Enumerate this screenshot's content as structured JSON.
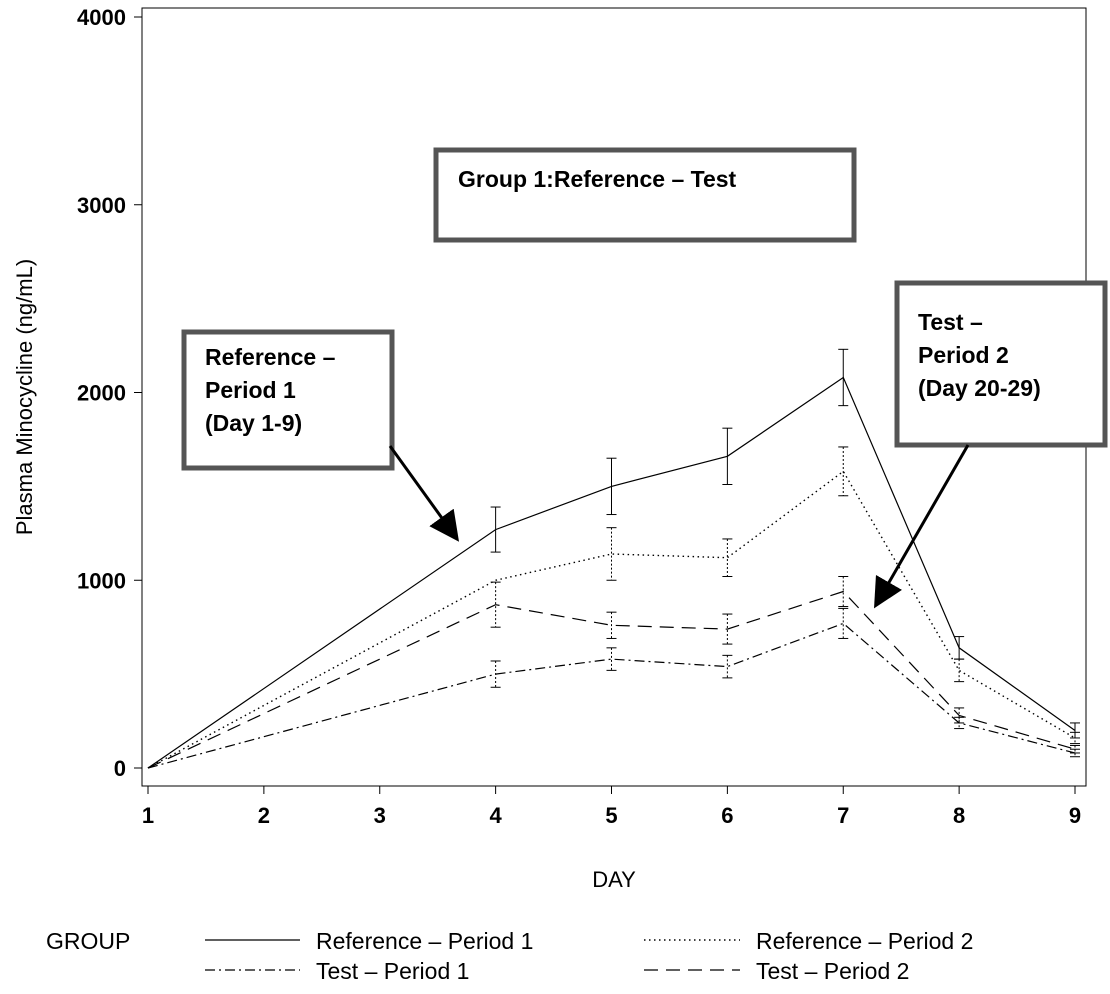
{
  "chart_data": {
    "type": "line",
    "xlabel": "DAY",
    "ylabel": "Plasma Minocycline (ng/mL)",
    "x": [
      1,
      4,
      5,
      6,
      7,
      8,
      9
    ],
    "xticks": [
      "1",
      "2",
      "3",
      "4",
      "5",
      "6",
      "7",
      "8",
      "9"
    ],
    "xlim": [
      1,
      9
    ],
    "yticks": [
      "0",
      "1000",
      "2000",
      "3000",
      "4000"
    ],
    "ylim": [
      0,
      4000
    ],
    "grid": false,
    "series": [
      {
        "name": "Reference – Period 1",
        "values": [
          0,
          1270,
          1500,
          1660,
          2080,
          640,
          200
        ],
        "errors": [
          0,
          120,
          150,
          150,
          150,
          60,
          40
        ],
        "style": "solid"
      },
      {
        "name": "Reference – Period 2",
        "values": [
          0,
          1000,
          1140,
          1120,
          1580,
          520,
          160
        ],
        "errors": [
          0,
          0,
          140,
          100,
          130,
          60,
          30
        ],
        "style": "dotted"
      },
      {
        "name": "Test – Period 1",
        "values": [
          0,
          500,
          580,
          540,
          770,
          240,
          80
        ],
        "errors": [
          0,
          70,
          60,
          60,
          80,
          30,
          20
        ],
        "style": "dashdot"
      },
      {
        "name": "Test – Period 2",
        "values": [
          0,
          870,
          760,
          740,
          940,
          280,
          100
        ],
        "errors": [
          0,
          120,
          70,
          80,
          80,
          40,
          20
        ],
        "style": "dashed"
      }
    ],
    "annotations": [
      {
        "lines": [
          "Group 1:Reference – Test"
        ]
      },
      {
        "lines": [
          "Reference –",
          "Period 1",
          "(Day 1-9)"
        ]
      },
      {
        "lines": [
          "Test –",
          "Period 2",
          "(Day 20-29)"
        ]
      }
    ],
    "legend": {
      "title": "GROUP",
      "placement": "bottom"
    }
  }
}
